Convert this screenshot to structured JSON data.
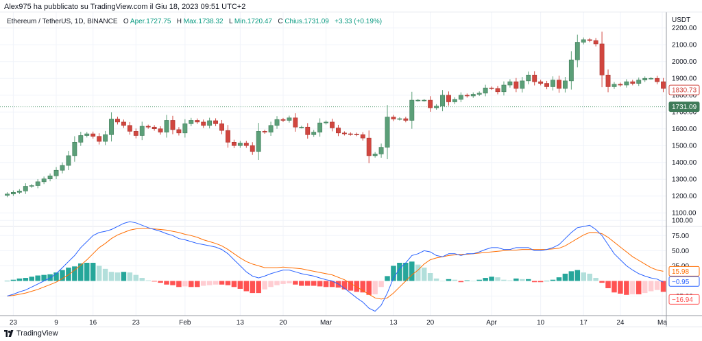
{
  "publish_line": "Alex975 ha pubblicato su TradingView.com il Giu 18, 2023 09:51 UTC+2",
  "legend": {
    "symbol": "Ethereum / TetherUS, 1D, BINANCE",
    "open_label": "O",
    "open_value": "Aper.1727.75",
    "high_label": "H",
    "high_value": "Max.1738.32",
    "low_label": "L",
    "low_value": "Min.1720.47",
    "close_label": "C",
    "close_value": "Chius.1731.09",
    "change": "+3.33 (+0.19%)"
  },
  "currency": "USDT",
  "brand": "TradingView",
  "colors": {
    "up": "#5b9f78",
    "down": "#d1463f",
    "macd_line": "#2962ff",
    "signal_line": "#ff6d00",
    "hist_up_strong": "#26a69a",
    "hist_up_weak": "#b2dfdb",
    "hist_down_strong": "#ff5252",
    "hist_down_weak": "#ffcdd2"
  },
  "price_badges": {
    "prev": "1830.73",
    "last": "1731.09"
  },
  "macd_badges": {
    "signal": "15.98",
    "macd": "−0.95",
    "hist": "−16.94"
  },
  "chart_data": [
    {
      "type": "candlestick",
      "title": "Ethereum / TetherUS, 1D, BINANCE",
      "ylabel": "USDT",
      "yticks": [
        "2200.00",
        "2100.00",
        "2000.00",
        "1900.00",
        "1800.00",
        "1700.00",
        "1600.00",
        "1500.00",
        "1400.00",
        "1300.00",
        "1200.00",
        "1100.00"
      ],
      "ylim": [
        1060,
        2260
      ],
      "xticks": [
        "23",
        "9",
        "16",
        "23",
        "Feb",
        "13",
        "20",
        "Mar",
        "13",
        "20",
        "Apr",
        "10",
        "17",
        "24",
        "Ma"
      ],
      "grid": true,
      "close": [
        1212,
        1222,
        1230,
        1258,
        1262,
        1285,
        1302,
        1320,
        1353,
        1382,
        1440,
        1520,
        1560,
        1570,
        1555,
        1525,
        1565,
        1658,
        1640,
        1620,
        1585,
        1560,
        1615,
        1610,
        1600,
        1580,
        1650,
        1595,
        1575,
        1630,
        1650,
        1640,
        1620,
        1648,
        1630,
        1590,
        1520,
        1500,
        1515,
        1500,
        1465,
        1585,
        1580,
        1620,
        1655,
        1650,
        1665,
        1610,
        1610,
        1565,
        1580,
        1635,
        1640,
        1605,
        1575,
        1570,
        1568,
        1565,
        1545,
        1440,
        1450,
        1490,
        1670,
        1658,
        1660,
        1650,
        1770,
        1770,
        1770,
        1725,
        1735,
        1800,
        1760,
        1775,
        1800,
        1795,
        1805,
        1812,
        1843,
        1840,
        1820,
        1860,
        1880,
        1840,
        1885,
        1920,
        1880,
        1870,
        1850,
        1890,
        1840,
        1885,
        2010,
        2115,
        2130,
        2125,
        2105,
        1920,
        1850,
        1865,
        1860,
        1880,
        1870,
        1890,
        1900,
        1900,
        1880,
        1840
      ]
    },
    {
      "type": "histogram+line",
      "title": "MACD",
      "yticks": [
        "100.00",
        "75.00",
        "50.00",
        "25.00",
        "−25.00"
      ],
      "ylim": [
        -55,
        115
      ],
      "macd": [
        -25,
        -22,
        -18,
        -15,
        -10,
        -5,
        0,
        5,
        12,
        22,
        32,
        42,
        55,
        65,
        75,
        80,
        82,
        85,
        90,
        95,
        98,
        96,
        92,
        88,
        85,
        82,
        78,
        75,
        70,
        68,
        65,
        62,
        60,
        58,
        56,
        52,
        45,
        35,
        25,
        15,
        8,
        5,
        8,
        12,
        15,
        18,
        18,
        15,
        12,
        10,
        8,
        5,
        2,
        0,
        -5,
        -12,
        -20,
        -28,
        -35,
        -45,
        -50,
        -40,
        -20,
        5,
        20,
        30,
        42,
        45,
        50,
        48,
        42,
        40,
        45,
        45,
        42,
        45,
        45,
        48,
        52,
        55,
        55,
        52,
        52,
        55,
        55,
        55,
        50,
        50,
        52,
        55,
        60,
        70,
        80,
        88,
        90,
        92,
        85,
        75,
        60,
        45,
        35,
        25,
        18,
        12,
        8,
        5,
        3,
        -2
      ]
    },
    {
      "type": "line",
      "title": "Signal",
      "values": [
        -25,
        -24,
        -22,
        -20,
        -17,
        -14,
        -10,
        -6,
        -2,
        4,
        10,
        18,
        26,
        35,
        45,
        55,
        62,
        70,
        76,
        80,
        84,
        86,
        87,
        87,
        86,
        85,
        84,
        82,
        80,
        77,
        75,
        72,
        68,
        65,
        62,
        58,
        52,
        45,
        38,
        32,
        28,
        25,
        22,
        22,
        22,
        23,
        22,
        21,
        20,
        18,
        16,
        14,
        12,
        10,
        6,
        2,
        -4,
        -10,
        -16,
        -22,
        -28,
        -30,
        -28,
        -20,
        -10,
        0,
        10,
        18,
        28,
        35,
        38,
        40,
        42,
        43,
        44,
        44,
        45,
        46,
        47,
        48,
        49,
        50,
        51,
        51,
        52,
        52,
        52,
        52,
        52,
        53,
        54,
        58,
        64,
        70,
        76,
        80,
        80,
        78,
        72,
        64,
        56,
        48,
        40,
        34,
        28,
        22,
        18,
        16
      ]
    }
  ]
}
